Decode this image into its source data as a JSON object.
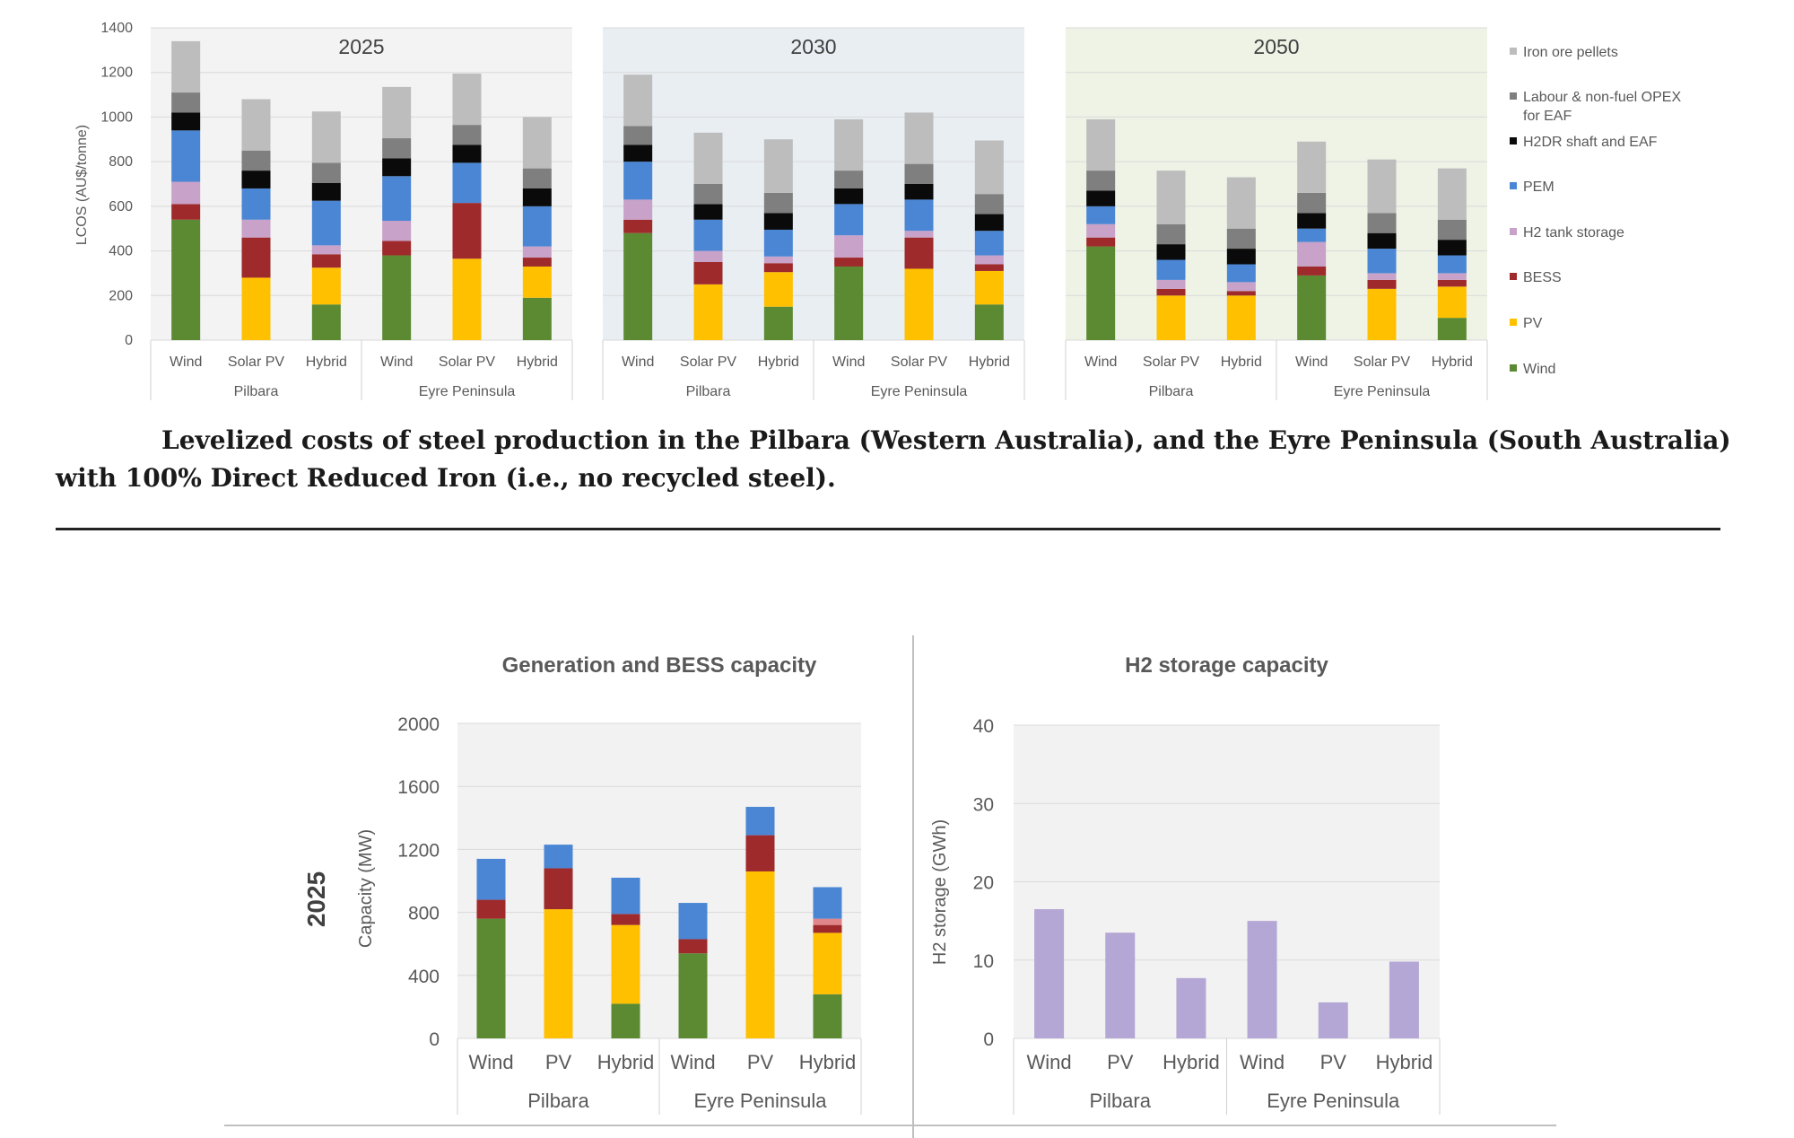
{
  "caption": "Levelized costs of steel production in the Pilbara (Western Australia), and the Eyre Peninsula (South Australia) with 100% Direct Reduced Iron (i.e., no recycled steel).",
  "colors": {
    "wind": "#5b8a32",
    "pv": "#ffc000",
    "bess": "#9e2a2b",
    "h2_tank": "#c8a2c8",
    "pem": "#4a86d4",
    "h2dr_eaf": "#0a0a0a",
    "labour": "#7f7f7f",
    "iron_ore": "#bdbdbd",
    "h2_storage_bar": "#b4a7d6",
    "pv_bess_pink": "#e0868a",
    "panel_2025": "#f3f3f3",
    "panel_2030": "#e9eef3",
    "panel_2050": "#eef3e6"
  },
  "chart_data": [
    {
      "type": "bar",
      "stacked": true,
      "ylabel": "LCOS (AU$/tonne)",
      "ylim": [
        0,
        1400
      ],
      "yticks": [
        "0",
        "200",
        "400",
        "600",
        "800",
        "1000",
        "1200",
        "1400"
      ],
      "yticks_values": [
        0,
        200,
        400,
        600,
        800,
        1000,
        1200,
        1400
      ],
      "legend_position": "right",
      "legend": [
        "Iron ore pellets",
        "Labour & non-fuel OPEX for EAF",
        "H2DR shaft and EAF",
        "PEM",
        "H2 tank storage",
        "BESS",
        "PV",
        "Wind"
      ],
      "legend_keys": [
        "iron_ore",
        "labour",
        "h2dr_eaf",
        "pem",
        "h2_tank",
        "bess",
        "pv",
        "wind"
      ],
      "components": [
        "wind",
        "pv",
        "bess",
        "h2_tank",
        "pem",
        "h2dr_eaf",
        "labour",
        "iron_ore"
      ],
      "categories": [
        "Wind",
        "Solar PV",
        "Hybrid",
        "Wind",
        "Solar PV",
        "Hybrid"
      ],
      "groups": [
        "Pilbara",
        "Eyre Peninsula"
      ],
      "panels": [
        {
          "title": "2025",
          "stacks": [
            [
              540,
              0,
              70,
              100,
              230,
              80,
              90,
              230
            ],
            [
              0,
              280,
              180,
              80,
              140,
              80,
              90,
              230
            ],
            [
              160,
              165,
              60,
              40,
              200,
              80,
              90,
              230
            ],
            [
              380,
              0,
              65,
              90,
              200,
              80,
              90,
              230
            ],
            [
              0,
              365,
              250,
              0,
              180,
              80,
              90,
              230
            ],
            [
              190,
              140,
              40,
              50,
              180,
              80,
              90,
              230
            ]
          ]
        },
        {
          "title": "2030",
          "stacks": [
            [
              480,
              0,
              60,
              90,
              170,
              75,
              85,
              230
            ],
            [
              0,
              250,
              100,
              50,
              140,
              70,
              90,
              230
            ],
            [
              150,
              155,
              40,
              30,
              120,
              75,
              90,
              240
            ],
            [
              330,
              0,
              40,
              100,
              140,
              70,
              80,
              230
            ],
            [
              0,
              320,
              140,
              30,
              140,
              70,
              90,
              230
            ],
            [
              160,
              150,
              30,
              40,
              110,
              75,
              90,
              240
            ]
          ]
        },
        {
          "title": "2050",
          "stacks": [
            [
              420,
              0,
              40,
              60,
              80,
              70,
              90,
              230
            ],
            [
              0,
              200,
              30,
              40,
              90,
              70,
              90,
              240
            ],
            [
              0,
              200,
              20,
              40,
              80,
              70,
              90,
              230
            ],
            [
              290,
              0,
              40,
              110,
              60,
              70,
              90,
              230
            ],
            [
              0,
              230,
              40,
              30,
              110,
              70,
              90,
              240
            ],
            [
              100,
              140,
              30,
              30,
              80,
              70,
              90,
              230
            ]
          ]
        }
      ]
    },
    {
      "type": "bar",
      "stacked": true,
      "title": "Generation and BESS capacity",
      "row_label": "2025",
      "ylabel": "Capacity (MW)",
      "ylim": [
        0,
        2000
      ],
      "yticks": [
        "0",
        "400",
        "800",
        "1200",
        "1600",
        "2000"
      ],
      "yticks_values": [
        0,
        400,
        800,
        1200,
        1600,
        2000
      ],
      "components": [
        "wind",
        "pv",
        "bess",
        "pv_bess_pink",
        "pem"
      ],
      "categories": [
        "Wind",
        "PV",
        "Hybrid",
        "Wind",
        "PV",
        "Hybrid"
      ],
      "groups": [
        "Pilbara",
        "Eyre Peninsula"
      ],
      "stacks": [
        [
          760,
          0,
          120,
          0,
          260
        ],
        [
          0,
          820,
          260,
          0,
          150
        ],
        [
          220,
          500,
          70,
          0,
          230
        ],
        [
          540,
          0,
          90,
          0,
          230
        ],
        [
          0,
          1060,
          230,
          0,
          180
        ],
        [
          280,
          390,
          50,
          40,
          200
        ]
      ]
    },
    {
      "type": "bar",
      "title": "H2 storage capacity",
      "ylabel": "H2 storage (GWh)",
      "ylim": [
        0,
        40
      ],
      "yticks": [
        "0",
        "10",
        "20",
        "30",
        "40"
      ],
      "yticks_values": [
        0,
        10,
        20,
        30,
        40
      ],
      "categories": [
        "Wind",
        "PV",
        "Hybrid",
        "Wind",
        "PV",
        "Hybrid"
      ],
      "groups": [
        "Pilbara",
        "Eyre Peninsula"
      ],
      "values": [
        16.5,
        13.5,
        7.7,
        15,
        4.6,
        9.8
      ]
    }
  ]
}
